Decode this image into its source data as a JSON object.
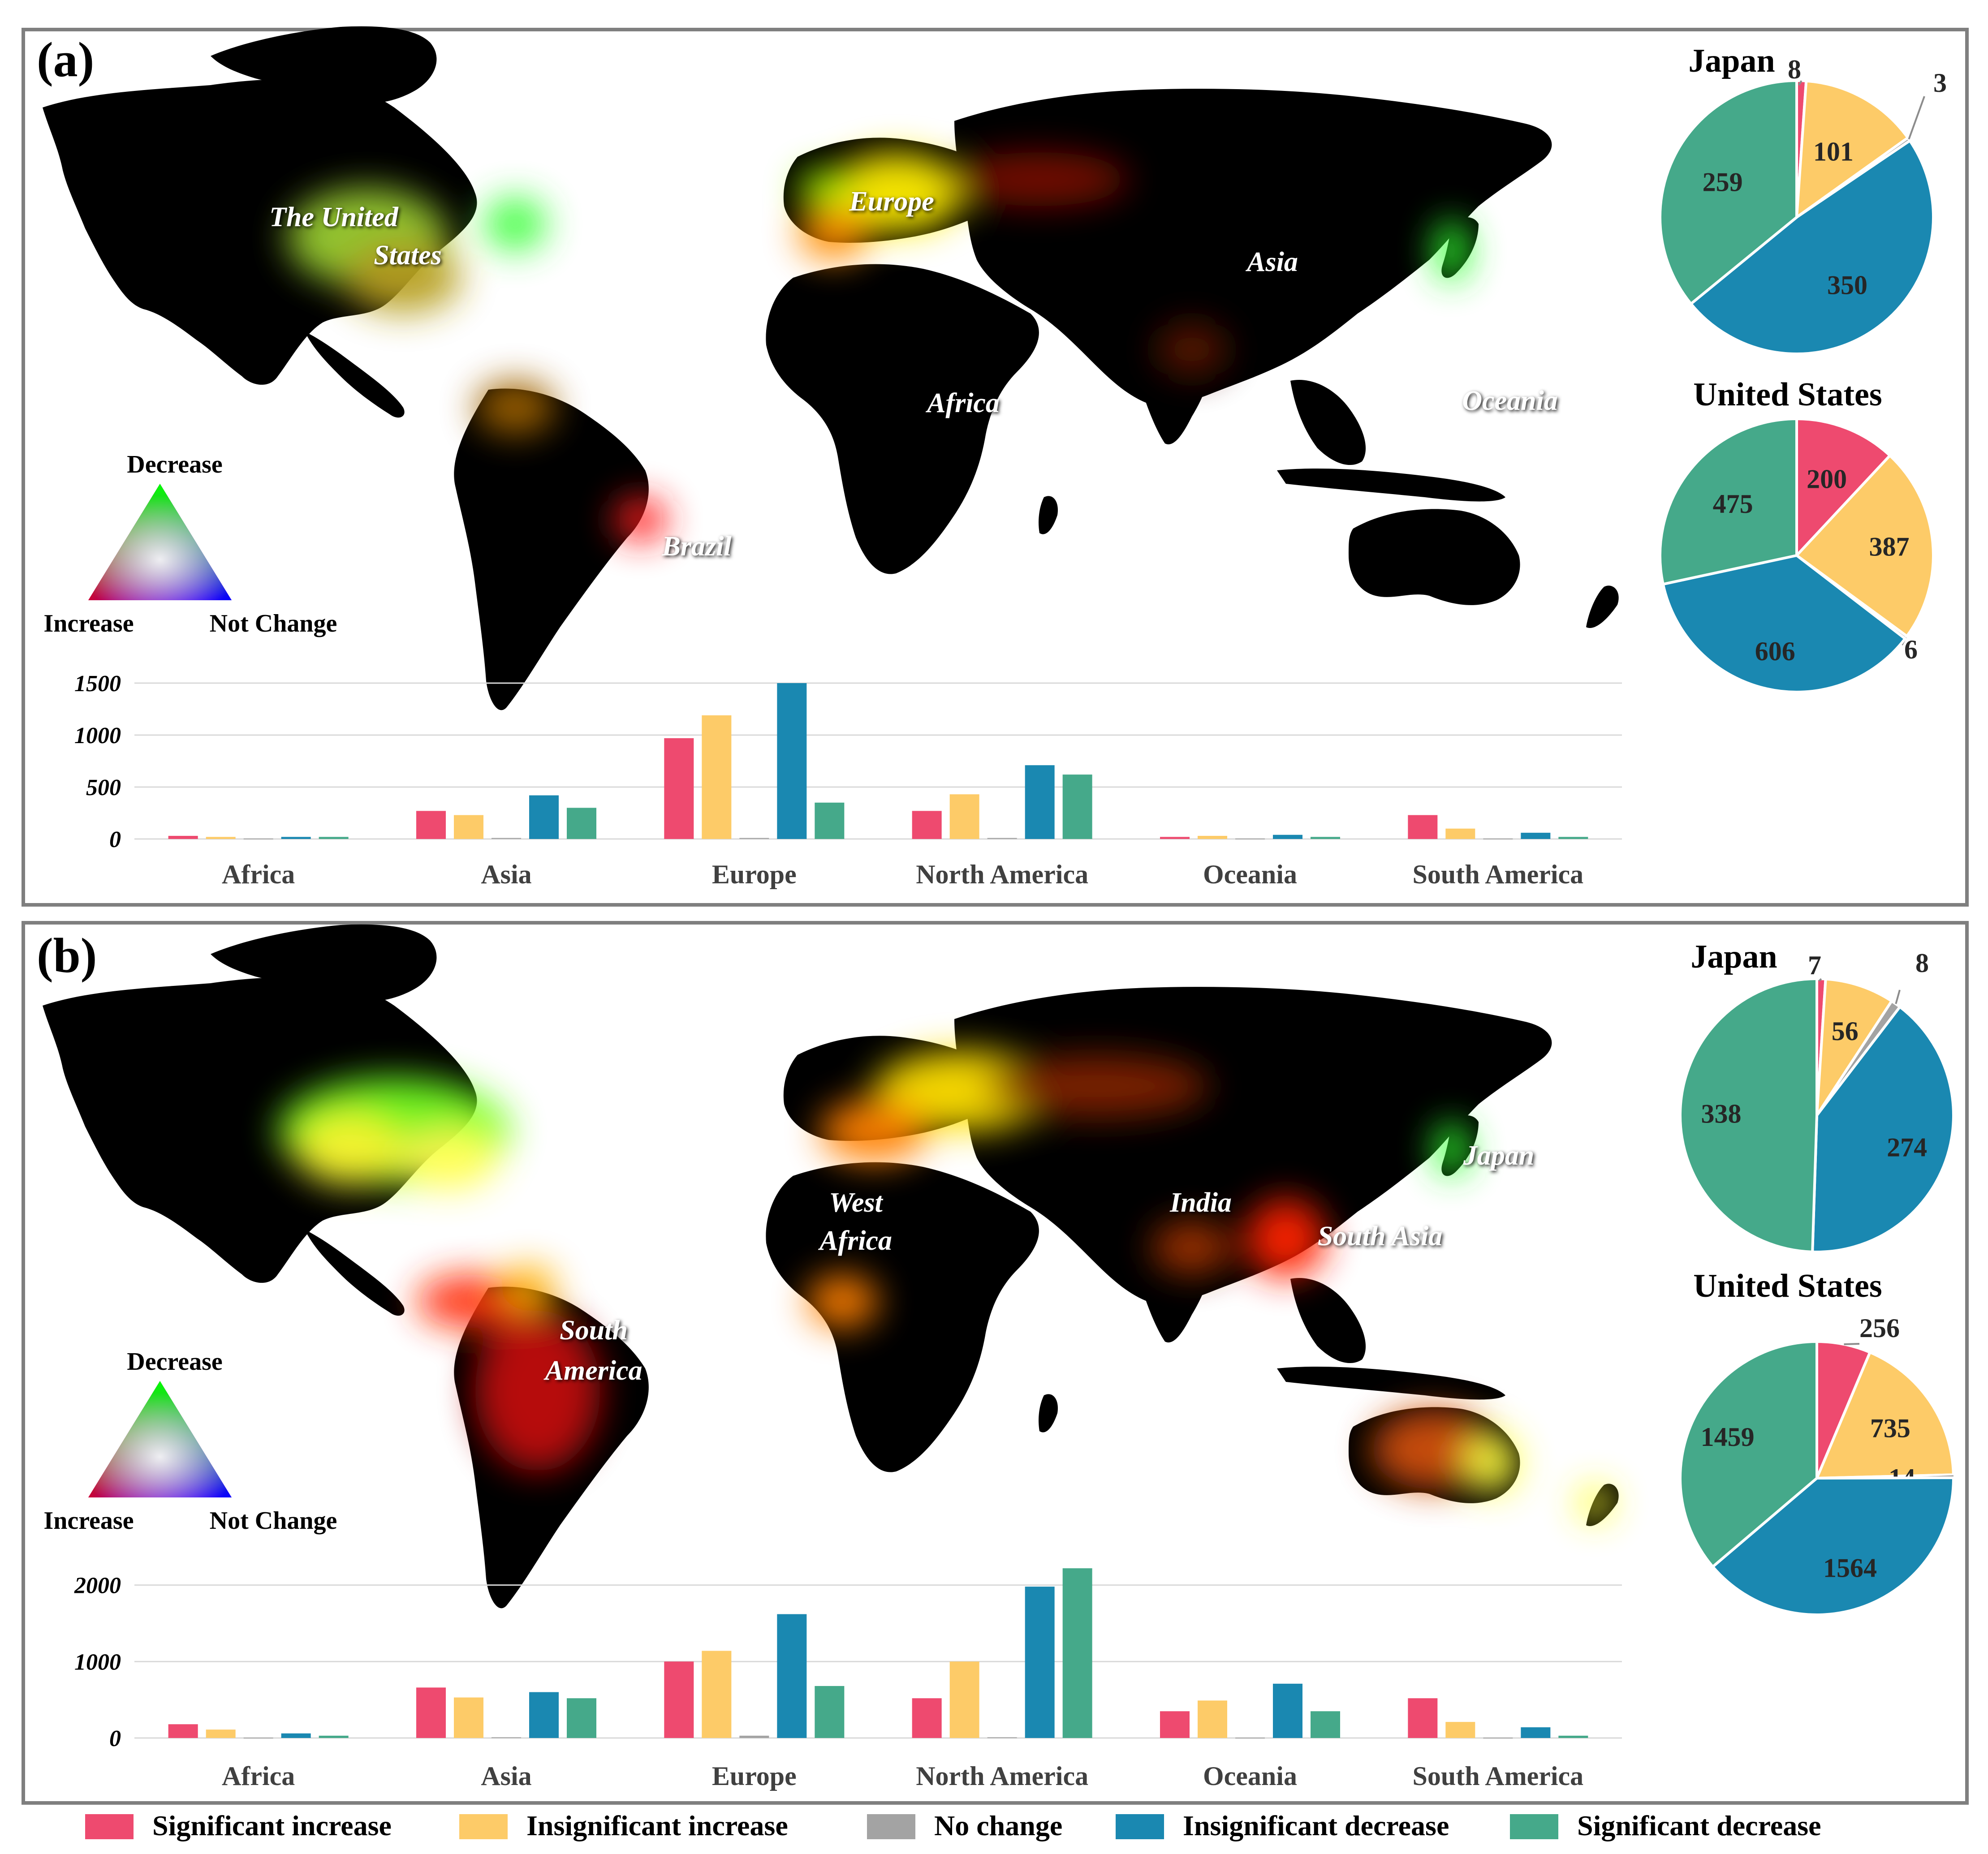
{
  "colors": {
    "significant_increase": "#EE4A6F",
    "insignificant_increase": "#FDCB68",
    "no_change": "#A3A3A3",
    "insignificant_decrease": "#1A88B1",
    "significant_decrease": "#45A98A",
    "ocean": "#ffffff",
    "land": "#000000"
  },
  "legend": {
    "items": [
      {
        "key": "significant_increase",
        "label": "Significant increase"
      },
      {
        "key": "insignificant_increase",
        "label": "Insignificant increase"
      },
      {
        "key": "no_change",
        "label": "No change"
      },
      {
        "key": "insignificant_decrease",
        "label": "Insignificant decrease"
      },
      {
        "key": "significant_decrease",
        "label": "Significant decrease"
      }
    ]
  },
  "triangle_legend": {
    "top": "Decrease",
    "left": "Increase",
    "right": "Not Change"
  },
  "panels": [
    {
      "tag": "(a)",
      "map_labels": [
        "The United",
        "States",
        "Europe",
        "Asia",
        "Africa",
        "Oceania",
        "Brazil"
      ]
    },
    {
      "tag": "(b)",
      "map_labels": [
        "West",
        "Africa",
        "South",
        "America",
        "India",
        "South Asia",
        "Japan"
      ]
    }
  ],
  "chart_data": [
    {
      "type": "bar",
      "panel": "a",
      "categories": [
        "Africa",
        "Asia",
        "Europe",
        "North America",
        "Oceania",
        "South America"
      ],
      "yticks": [
        "0",
        "500",
        "1000",
        "1500"
      ],
      "ylim": [
        0,
        1500
      ],
      "grid": true,
      "series": [
        {
          "name": "Significant increase",
          "values": [
            30,
            270,
            970,
            270,
            20,
            230
          ]
        },
        {
          "name": "Insignificant increase",
          "values": [
            20,
            230,
            1190,
            430,
            30,
            100
          ]
        },
        {
          "name": "No change",
          "values": [
            5,
            10,
            10,
            10,
            5,
            5
          ]
        },
        {
          "name": "Insignificant decrease",
          "values": [
            20,
            420,
            1500,
            710,
            40,
            60
          ]
        },
        {
          "name": "Significant decrease",
          "values": [
            20,
            300,
            350,
            620,
            20,
            20
          ]
        }
      ]
    },
    {
      "type": "pie",
      "panel": "a",
      "title": "Japan",
      "slices": [
        {
          "name": "Significant increase",
          "value": 8,
          "label": "8"
        },
        {
          "name": "Insignificant increase",
          "value": 101,
          "label": "101"
        },
        {
          "name": "No change",
          "value": 3,
          "label": "3"
        },
        {
          "name": "Insignificant decrease",
          "value": 350,
          "label": "350"
        },
        {
          "name": "Significant decrease",
          "value": 259,
          "label": "259"
        }
      ]
    },
    {
      "type": "pie",
      "panel": "a",
      "title": "United States",
      "slices": [
        {
          "name": "Significant increase",
          "value": 200,
          "label": "200"
        },
        {
          "name": "Insignificant increase",
          "value": 387,
          "label": "387"
        },
        {
          "name": "No change",
          "value": 6,
          "label": "6"
        },
        {
          "name": "Insignificant decrease",
          "value": 606,
          "label": "606"
        },
        {
          "name": "Significant decrease",
          "value": 475,
          "label": "475"
        }
      ]
    },
    {
      "type": "bar",
      "panel": "b",
      "categories": [
        "Africa",
        "Asia",
        "Europe",
        "North America",
        "Oceania",
        "South America"
      ],
      "yticks": [
        "0",
        "1000",
        "2000"
      ],
      "ylim": [
        0,
        2250
      ],
      "grid": true,
      "series": [
        {
          "name": "Significant increase",
          "values": [
            180,
            660,
            1000,
            520,
            350,
            520
          ]
        },
        {
          "name": "Insignificant increase",
          "values": [
            110,
            530,
            1140,
            1000,
            490,
            210
          ]
        },
        {
          "name": "No change",
          "values": [
            5,
            10,
            30,
            10,
            5,
            5
          ]
        },
        {
          "name": "Insignificant decrease",
          "values": [
            60,
            600,
            1620,
            1980,
            710,
            140
          ]
        },
        {
          "name": "Significant decrease",
          "values": [
            30,
            520,
            680,
            2220,
            350,
            30
          ]
        }
      ]
    },
    {
      "type": "pie",
      "panel": "b",
      "title": "Japan",
      "slices": [
        {
          "name": "Significant increase",
          "value": 7,
          "label": "7"
        },
        {
          "name": "Insignificant increase",
          "value": 56,
          "label": "56"
        },
        {
          "name": "No change",
          "value": 8,
          "label": "8"
        },
        {
          "name": "Insignificant decrease",
          "value": 274,
          "label": "274"
        },
        {
          "name": "Significant decrease",
          "value": 338,
          "label": "338"
        }
      ]
    },
    {
      "type": "pie",
      "panel": "b",
      "title": "United States",
      "slices": [
        {
          "name": "Significant increase",
          "value": 256,
          "label": "256"
        },
        {
          "name": "Insignificant increase",
          "value": 735,
          "label": "735"
        },
        {
          "name": "No change",
          "value": 14,
          "label": "14"
        },
        {
          "name": "Insignificant decrease",
          "value": 1564,
          "label": "1564"
        },
        {
          "name": "Significant decrease",
          "value": 1459,
          "label": "1459"
        }
      ]
    }
  ]
}
